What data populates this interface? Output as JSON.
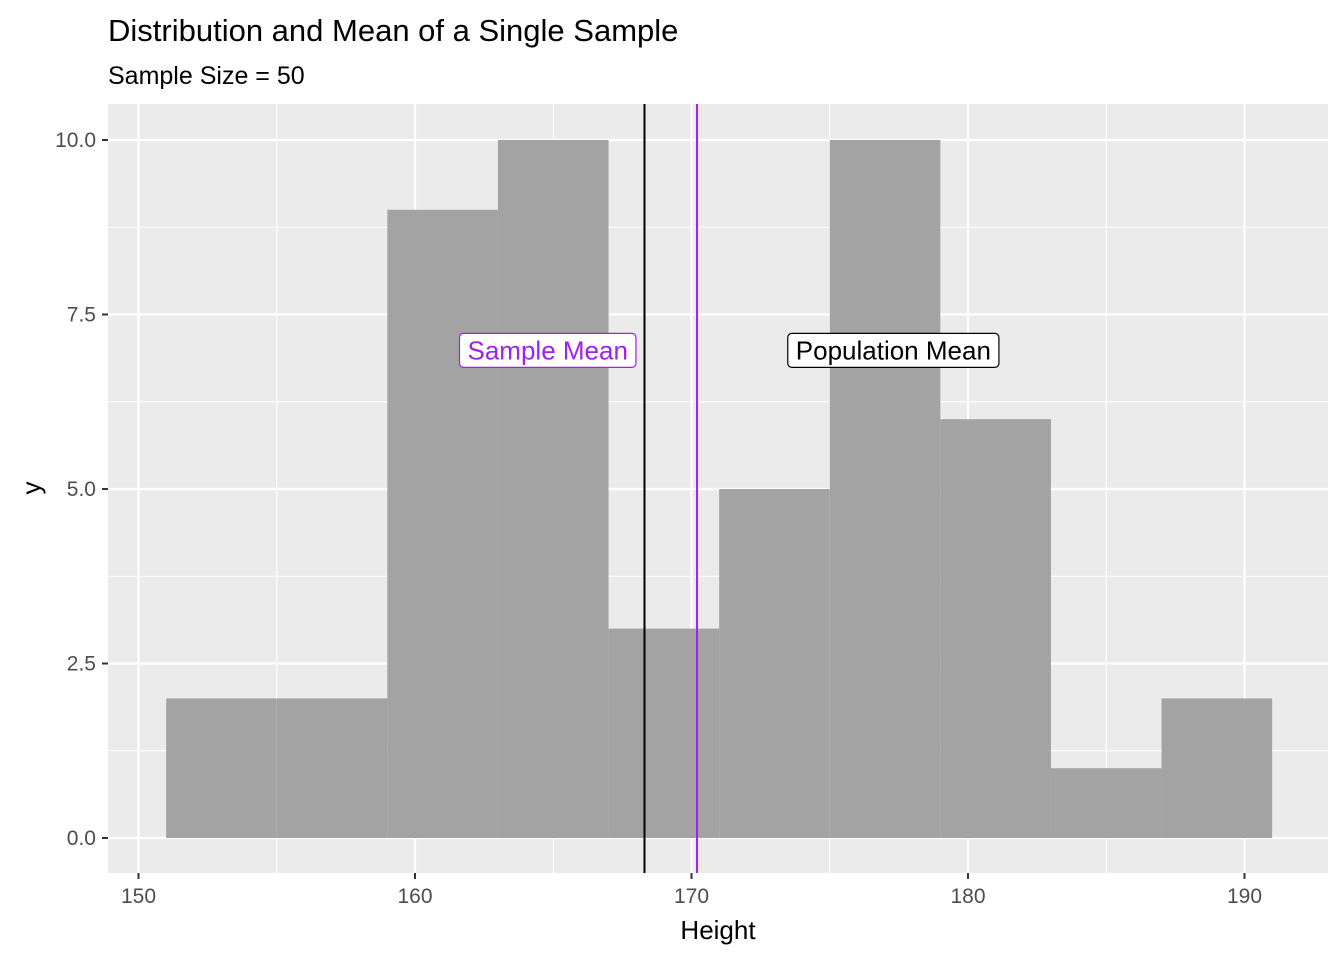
{
  "chart_data": {
    "type": "bar",
    "title": "Distribution and Mean of a Single Sample",
    "subtitle": "Sample Size = 50",
    "xlabel": "Height",
    "ylabel": "y",
    "xlim": [
      150,
      191.5
    ],
    "ylim": [
      0,
      10
    ],
    "x_ticks": [
      150,
      160,
      170,
      180,
      190
    ],
    "y_ticks": [
      0,
      2.5,
      5,
      7.5,
      10
    ],
    "x_tick_labels": [
      "150",
      "160",
      "170",
      "180",
      "190"
    ],
    "y_tick_labels": [
      "0.0",
      "2.5",
      "5.0",
      "7.5",
      "10.0"
    ],
    "grid": true,
    "bins": [
      {
        "x0": 151,
        "x1": 155,
        "count": 2
      },
      {
        "x0": 155,
        "x1": 159,
        "count": 2
      },
      {
        "x0": 159,
        "x1": 163,
        "count": 9
      },
      {
        "x0": 163,
        "x1": 167,
        "count": 10
      },
      {
        "x0": 167,
        "x1": 171,
        "count": 3
      },
      {
        "x0": 171,
        "x1": 175,
        "count": 5
      },
      {
        "x0": 175,
        "x1": 179,
        "count": 10
      },
      {
        "x0": 179,
        "x1": 183,
        "count": 6
      },
      {
        "x0": 183,
        "x1": 187,
        "count": 1
      },
      {
        "x0": 187,
        "x1": 191,
        "count": 2
      }
    ],
    "bar_color": "#a3a3a3",
    "vlines": [
      {
        "x": 168.3,
        "color": "#000000"
      },
      {
        "x": 170.2,
        "color": "#a020f0"
      }
    ],
    "annotations": [
      {
        "text": "Sample Mean",
        "x": 164.8,
        "y": 7,
        "color": "#a020f0"
      },
      {
        "text": "Population Mean",
        "x": 177.3,
        "y": 7,
        "color": "#000000"
      }
    ]
  }
}
